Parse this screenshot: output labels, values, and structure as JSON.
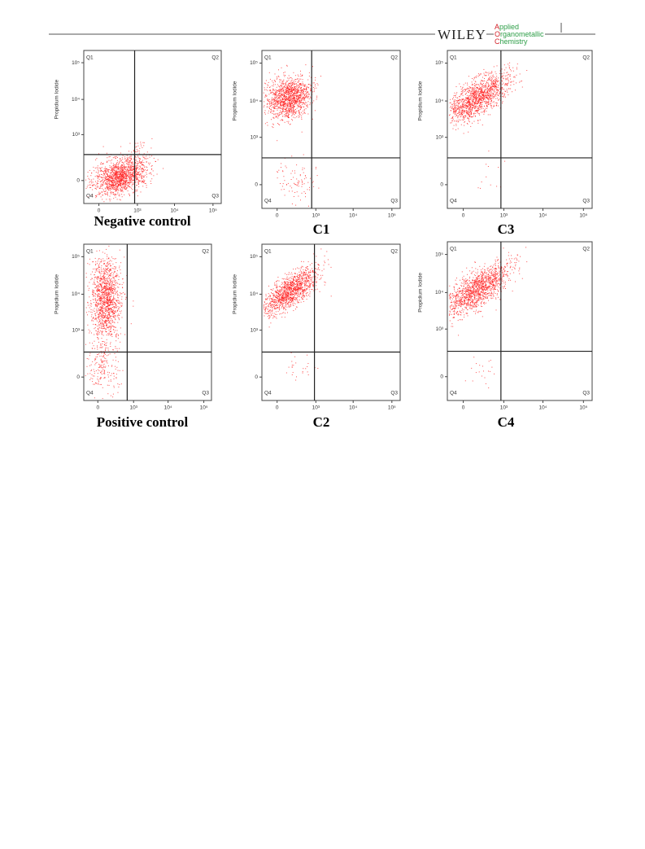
{
  "header": {
    "publisher": "WILEY",
    "journal": [
      {
        "initial": "A",
        "rest": "pplied"
      },
      {
        "initial": "O",
        "rest": "rganometallic"
      },
      {
        "initial": "C",
        "rest": "hemistry"
      }
    ]
  },
  "figure": {
    "axis_label": "Propidium Iodide",
    "y_ticks": [
      "10⁵",
      "10⁴",
      "10³",
      "0"
    ],
    "x_ticks": [
      "0",
      "10³",
      "10⁴",
      "10⁵"
    ],
    "quadrants": [
      "Q1",
      "Q2",
      "Q3",
      "Q4"
    ],
    "panels": [
      {
        "label": "Negative control"
      },
      {
        "label": "C1"
      },
      {
        "label": "C3"
      },
      {
        "label": "Positive control"
      },
      {
        "label": "C2"
      },
      {
        "label": "C4"
      }
    ]
  }
}
